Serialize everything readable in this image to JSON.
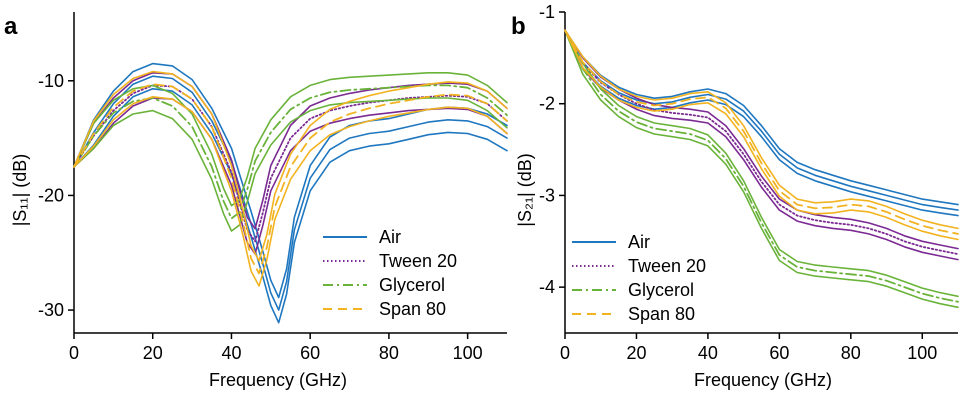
{
  "colors": {
    "air": "#1f77c0",
    "tween20": "#7b2a93",
    "glycerol": "#6ab33a",
    "span80": "#f2b320"
  },
  "chart_data": [
    {
      "type": "line",
      "panel_label": "a",
      "xlabel": "Frequency (GHz)",
      "ylabel": "|S₁₁| (dB)",
      "xlim": [
        0,
        110
      ],
      "ylim": [
        -32,
        -4
      ],
      "xticks": [
        0,
        20,
        40,
        60,
        80,
        100
      ],
      "yticks": [
        -10,
        -20,
        -30
      ],
      "xtick_labels": [
        "0",
        "20",
        "40",
        "60",
        "80",
        "100"
      ],
      "ytick_labels": [
        "-10",
        "-20",
        "-30"
      ],
      "grid": false,
      "legend_position": "bottom-right",
      "series": [
        {
          "name": "Air",
          "style": "solid",
          "color_key": "air",
          "x": [
            0,
            5,
            10,
            15,
            20,
            25,
            30,
            35,
            40,
            45,
            48,
            50,
            52,
            54,
            56,
            60,
            65,
            70,
            75,
            80,
            85,
            90,
            95,
            100,
            105,
            110
          ],
          "y": [
            -17.5,
            -14.5,
            -12,
            -10.3,
            -9.6,
            -9.8,
            -11,
            -13.5,
            -17,
            -22.5,
            -26,
            -28.5,
            -30,
            -27.5,
            -23,
            -18.5,
            -16,
            -15,
            -14.6,
            -14.4,
            -14,
            -13.6,
            -13.4,
            -13.5,
            -14,
            -15
          ]
        },
        {
          "name": "Tween 20",
          "style": "dotted",
          "color_key": "tween20",
          "x": [
            0,
            5,
            10,
            15,
            20,
            25,
            30,
            35,
            40,
            42,
            44,
            46,
            48,
            50,
            55,
            60,
            65,
            70,
            75,
            80,
            85,
            90,
            95,
            100,
            105,
            110
          ],
          "y": [
            -17.5,
            -14.8,
            -12.6,
            -11.1,
            -10.4,
            -10.5,
            -11.6,
            -14,
            -18,
            -20.5,
            -23,
            -24,
            -21.5,
            -18.5,
            -15,
            -13.3,
            -12.6,
            -12.2,
            -11.9,
            -11.7,
            -11.5,
            -11.4,
            -11.3,
            -11.4,
            -12,
            -13.5
          ]
        },
        {
          "name": "Glycerol",
          "style": "dashdot",
          "color_key": "glycerol",
          "x": [
            0,
            5,
            10,
            15,
            20,
            25,
            30,
            35,
            38,
            40,
            42,
            44,
            46,
            50,
            55,
            60,
            65,
            70,
            75,
            80,
            85,
            90,
            95,
            100,
            105,
            110
          ],
          "y": [
            -17.5,
            -14.8,
            -12.8,
            -11.8,
            -11.5,
            -12.2,
            -14,
            -17.5,
            -20.5,
            -22,
            -21.5,
            -19.5,
            -17,
            -14.5,
            -12.5,
            -11.5,
            -11,
            -10.8,
            -10.7,
            -10.6,
            -10.5,
            -10.4,
            -10.4,
            -10.6,
            -11.5,
            -13
          ]
        },
        {
          "name": "Span 80",
          "style": "dashed",
          "color_key": "span80",
          "x": [
            0,
            5,
            10,
            15,
            20,
            25,
            30,
            35,
            40,
            43,
            45,
            47,
            49,
            51,
            55,
            60,
            65,
            70,
            75,
            80,
            85,
            90,
            95,
            100,
            105,
            110
          ],
          "y": [
            -17.5,
            -14.6,
            -12.3,
            -10.9,
            -10.3,
            -10.5,
            -11.6,
            -14,
            -18.5,
            -22.5,
            -25.5,
            -26.8,
            -24.5,
            -21,
            -17.5,
            -15,
            -13.6,
            -12.9,
            -12.4,
            -12,
            -11.7,
            -11.4,
            -11.2,
            -11.3,
            -12,
            -13.5
          ]
        }
      ]
    },
    {
      "type": "line",
      "panel_label": "b",
      "xlabel": "Frequency (GHz)",
      "ylabel": "|S₂₁| (dB)",
      "xlim": [
        0,
        110
      ],
      "ylim": [
        -4.5,
        -1
      ],
      "xticks": [
        0,
        20,
        40,
        60,
        80,
        100
      ],
      "yticks": [
        -1,
        -2,
        -3,
        -4
      ],
      "xtick_labels": [
        "0",
        "20",
        "40",
        "60",
        "80",
        "100"
      ],
      "ytick_labels": [
        "-1",
        "-2",
        "-3",
        "-4"
      ],
      "grid": false,
      "legend_position": "bottom-left",
      "series": [
        {
          "name": "Air",
          "style": "solid",
          "color_key": "air",
          "x": [
            0,
            5,
            10,
            15,
            20,
            25,
            30,
            35,
            40,
            45,
            50,
            55,
            60,
            65,
            70,
            75,
            80,
            85,
            90,
            95,
            100,
            105,
            110
          ],
          "y": [
            -1.2,
            -1.55,
            -1.75,
            -1.88,
            -1.96,
            -2.0,
            -1.98,
            -1.93,
            -1.9,
            -1.95,
            -2.08,
            -2.3,
            -2.55,
            -2.7,
            -2.78,
            -2.84,
            -2.9,
            -2.95,
            -3.0,
            -3.05,
            -3.1,
            -3.13,
            -3.16
          ]
        },
        {
          "name": "Tween 20",
          "style": "dotted",
          "color_key": "tween20",
          "x": [
            0,
            5,
            10,
            15,
            20,
            25,
            30,
            35,
            40,
            45,
            50,
            55,
            60,
            65,
            70,
            75,
            80,
            85,
            90,
            95,
            100,
            105,
            110
          ],
          "y": [
            -1.2,
            -1.56,
            -1.77,
            -1.9,
            -2.0,
            -2.07,
            -2.1,
            -2.12,
            -2.15,
            -2.3,
            -2.55,
            -2.85,
            -3.1,
            -3.22,
            -3.27,
            -3.3,
            -3.32,
            -3.36,
            -3.42,
            -3.5,
            -3.56,
            -3.6,
            -3.64
          ]
        },
        {
          "name": "Glycerol",
          "style": "dashdot",
          "color_key": "glycerol",
          "x": [
            0,
            5,
            10,
            15,
            20,
            25,
            30,
            35,
            40,
            45,
            50,
            55,
            60,
            65,
            70,
            75,
            80,
            85,
            90,
            95,
            100,
            105,
            110
          ],
          "y": [
            -1.2,
            -1.62,
            -1.9,
            -2.08,
            -2.2,
            -2.27,
            -2.3,
            -2.33,
            -2.4,
            -2.6,
            -2.9,
            -3.3,
            -3.65,
            -3.78,
            -3.82,
            -3.84,
            -3.86,
            -3.88,
            -3.93,
            -4.0,
            -4.07,
            -4.12,
            -4.16
          ]
        },
        {
          "name": "Span 80",
          "style": "dashed",
          "color_key": "span80",
          "x": [
            0,
            5,
            10,
            15,
            20,
            25,
            30,
            35,
            40,
            45,
            50,
            55,
            60,
            65,
            70,
            75,
            80,
            85,
            90,
            95,
            100,
            105,
            110
          ],
          "y": [
            -1.2,
            -1.55,
            -1.76,
            -1.9,
            -1.98,
            -2.02,
            -2.0,
            -1.95,
            -1.93,
            -2.05,
            -2.3,
            -2.65,
            -2.95,
            -3.1,
            -3.14,
            -3.13,
            -3.1,
            -3.12,
            -3.18,
            -3.26,
            -3.33,
            -3.38,
            -3.42
          ]
        }
      ]
    }
  ]
}
